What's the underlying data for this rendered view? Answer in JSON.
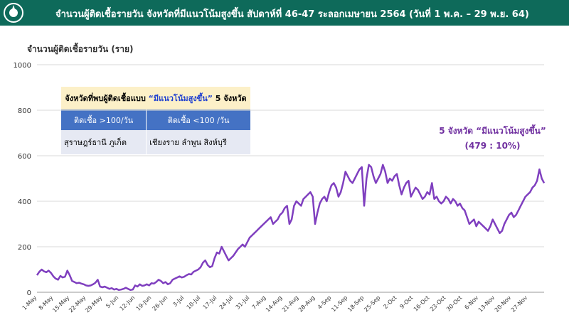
{
  "header": {
    "title": "จำนวนผู้ติดเชื้อรายวัน จังหวัดที่มีแนวโน้มสูงขึ้น สัปดาห์ที่ 46-47 ระลอกเมษายน 2564 (วันที่ 1 พ.ค. – 29 พ.ย. 64)",
    "logo_icon": "ministry-logo-icon"
  },
  "reference_table": {
    "title_prefix": "จังหวัดที่พบผู้ติดเชื้อแบบ ",
    "title_highlight": "“มีแนวโน้มสูงขึ้น”",
    "title_suffix": " 5 จังหวัด",
    "headers": [
      "ติดเชื้อ >100/วัน",
      "ติดเชื้อ <100 /วัน"
    ],
    "cells": [
      "สุราษฎร์ธานี ภูเก็ต",
      "เชียงราย ลำพูน สิงห์บุรี"
    ]
  },
  "annotation": {
    "line1": "5 จังหวัด “มีแนวโน้มสูงขึ้น”",
    "line2": "(479 : 10%)",
    "color": "#7030a0"
  },
  "chart_data": {
    "type": "line",
    "title": "",
    "xlabel": "",
    "ylabel": "จำนวนผู้ติดเชื้อรายวัน (ราย)",
    "ylim": [
      0,
      1000
    ],
    "yticks": [
      0,
      200,
      400,
      600,
      800,
      1000
    ],
    "grid": true,
    "line_color": "#7f3fbf",
    "x_ticks": [
      "1-May",
      "8-May",
      "15-May",
      "22-May",
      "29-May",
      "5-Jun",
      "12-Jun",
      "19-Jun",
      "26-Jun",
      "3-Jul",
      "10-Jul",
      "17-Jul",
      "24-Jul",
      "31-Jul",
      "7-Aug",
      "14-Aug",
      "21-Aug",
      "28-Aug",
      "4-Sep",
      "11-Sep",
      "18-Sep",
      "25-Sep",
      "2-Oct",
      "9-Oct",
      "16-Oct",
      "23-Oct",
      "30-Oct",
      "6-Nov",
      "13-Nov",
      "20-Nov",
      "27-Nov"
    ],
    "series": [
      {
        "name": "",
        "start_date": "1-May",
        "values": [
          75,
          90,
          100,
          92,
          88,
          95,
          85,
          70,
          60,
          55,
          72,
          65,
          68,
          95,
          75,
          50,
          45,
          40,
          42,
          38,
          35,
          30,
          28,
          30,
          35,
          42,
          55,
          25,
          22,
          25,
          20,
          15,
          18,
          12,
          15,
          10,
          12,
          15,
          20,
          15,
          10,
          12,
          30,
          25,
          35,
          28,
          30,
          35,
          30,
          40,
          38,
          45,
          55,
          50,
          40,
          45,
          35,
          40,
          55,
          60,
          65,
          70,
          65,
          68,
          75,
          80,
          78,
          90,
          95,
          100,
          110,
          130,
          140,
          120,
          110,
          115,
          150,
          175,
          170,
          200,
          180,
          160,
          140,
          150,
          160,
          175,
          190,
          200,
          210,
          200,
          220,
          240,
          250,
          260,
          270,
          280,
          290,
          300,
          310,
          320,
          330,
          300,
          310,
          320,
          340,
          350,
          370,
          380,
          300,
          320,
          380,
          400,
          390,
          380,
          410,
          420,
          430,
          440,
          420,
          300,
          350,
          390,
          410,
          420,
          400,
          440,
          470,
          480,
          460,
          420,
          440,
          480,
          530,
          510,
          490,
          480,
          500,
          520,
          540,
          550,
          380,
          500,
          560,
          550,
          510,
          480,
          500,
          520,
          560,
          530,
          480,
          500,
          490,
          510,
          520,
          470,
          430,
          460,
          480,
          490,
          420,
          440,
          460,
          450,
          430,
          410,
          420,
          440,
          430,
          480,
          410,
          420,
          400,
          390,
          400,
          420,
          410,
          390,
          410,
          400,
          380,
          390,
          370,
          360,
          330,
          300,
          310,
          320,
          290,
          310,
          300,
          290,
          280,
          270,
          290,
          320,
          300,
          280,
          260,
          270,
          300,
          320,
          340,
          350,
          330,
          340,
          360,
          380,
          400,
          420,
          430,
          440,
          460,
          470,
          490,
          540,
          500,
          480
        ]
      }
    ]
  }
}
